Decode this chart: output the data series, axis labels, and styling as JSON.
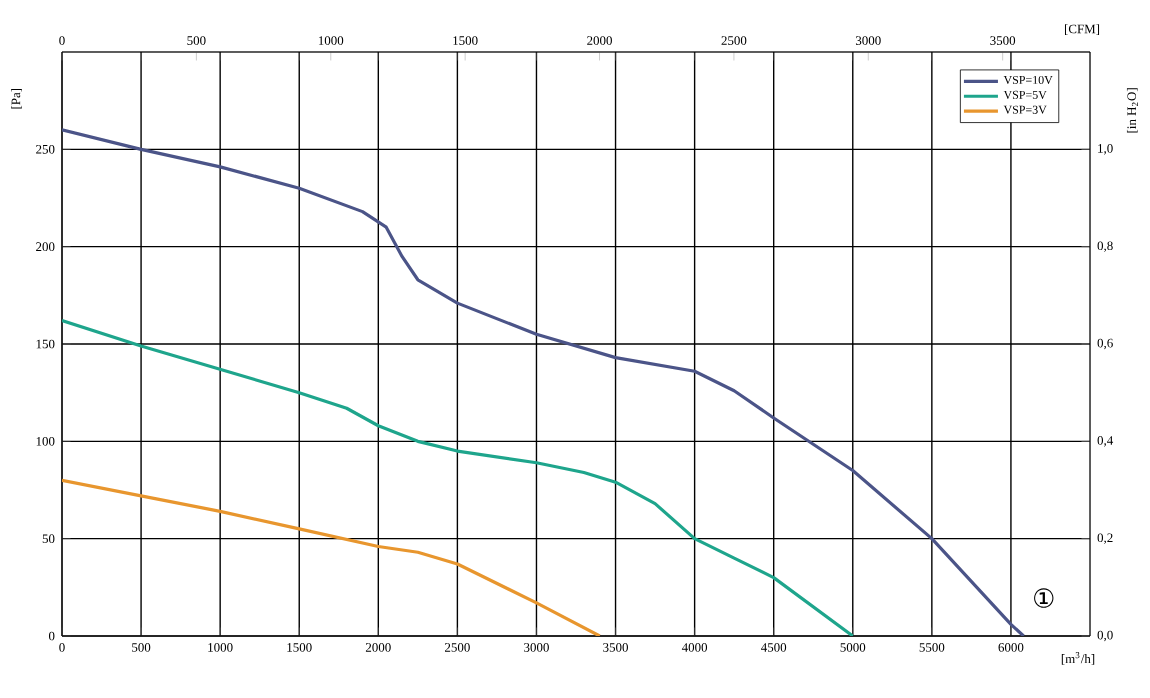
{
  "chart_data": {
    "type": "line",
    "xlabel": "[m$^{3}$/h]",
    "ylabel": "[Pa]",
    "x2label": "[CFM]",
    "y2label": "[in H$_{2}$O]",
    "xlim": [
      0,
      6500
    ],
    "xticks": [
      0,
      500,
      1000,
      1500,
      2000,
      2500,
      3000,
      3500,
      4000,
      4500,
      5000,
      5500,
      6000
    ],
    "ylim": [
      0,
      300
    ],
    "yticks": [
      0,
      50,
      100,
      150,
      200,
      250
    ],
    "x2lim": [
      0,
      3825
    ],
    "x2ticks": [
      0,
      500,
      1000,
      1500,
      2000,
      2500,
      3000,
      3500
    ],
    "y2lim": [
      0,
      1.2
    ],
    "y2ticks": [
      {
        "value": 0,
        "label": "0,0"
      },
      {
        "value": 0.2,
        "label": "0,2"
      },
      {
        "value": 0.4,
        "label": "0,4"
      },
      {
        "value": 0.6,
        "label": "0,6"
      },
      {
        "value": 0.8,
        "label": "0,8"
      },
      {
        "value": 1.0,
        "label": "1,0"
      }
    ],
    "grid": true,
    "legend": "top right",
    "marker": "none",
    "line_style": "solid",
    "annotations": [
      "①"
    ],
    "series": [
      {
        "name": "VSP=10V",
        "color": "#4b5488",
        "x": [
          0,
          500,
          1000,
          1500,
          1900,
          2050,
          2150,
          2250,
          2500,
          3000,
          3500,
          4000,
          4250,
          4500,
          5000,
          5500,
          6000,
          6080
        ],
        "values": [
          260,
          250,
          241,
          230,
          218,
          210,
          195,
          183,
          171,
          155,
          143,
          136,
          126,
          112,
          85,
          50,
          6,
          0
        ]
      },
      {
        "name": "VSP=5V",
        "color": "#1ea58c",
        "x": [
          0,
          500,
          1000,
          1500,
          1800,
          2000,
          2250,
          2500,
          3000,
          3300,
          3500,
          3750,
          4000,
          4250,
          4500,
          5000
        ],
        "values": [
          162,
          149,
          137,
          125,
          117,
          108,
          100,
          95,
          89,
          84,
          79,
          68,
          50,
          40,
          30,
          0
        ]
      },
      {
        "name": "VSP=3V",
        "color": "#e8962e",
        "x": [
          0,
          500,
          1000,
          1500,
          2000,
          2250,
          2500,
          3000,
          3400
        ],
        "values": [
          80,
          72,
          64,
          55,
          46,
          43,
          37,
          17,
          0
        ]
      }
    ]
  }
}
